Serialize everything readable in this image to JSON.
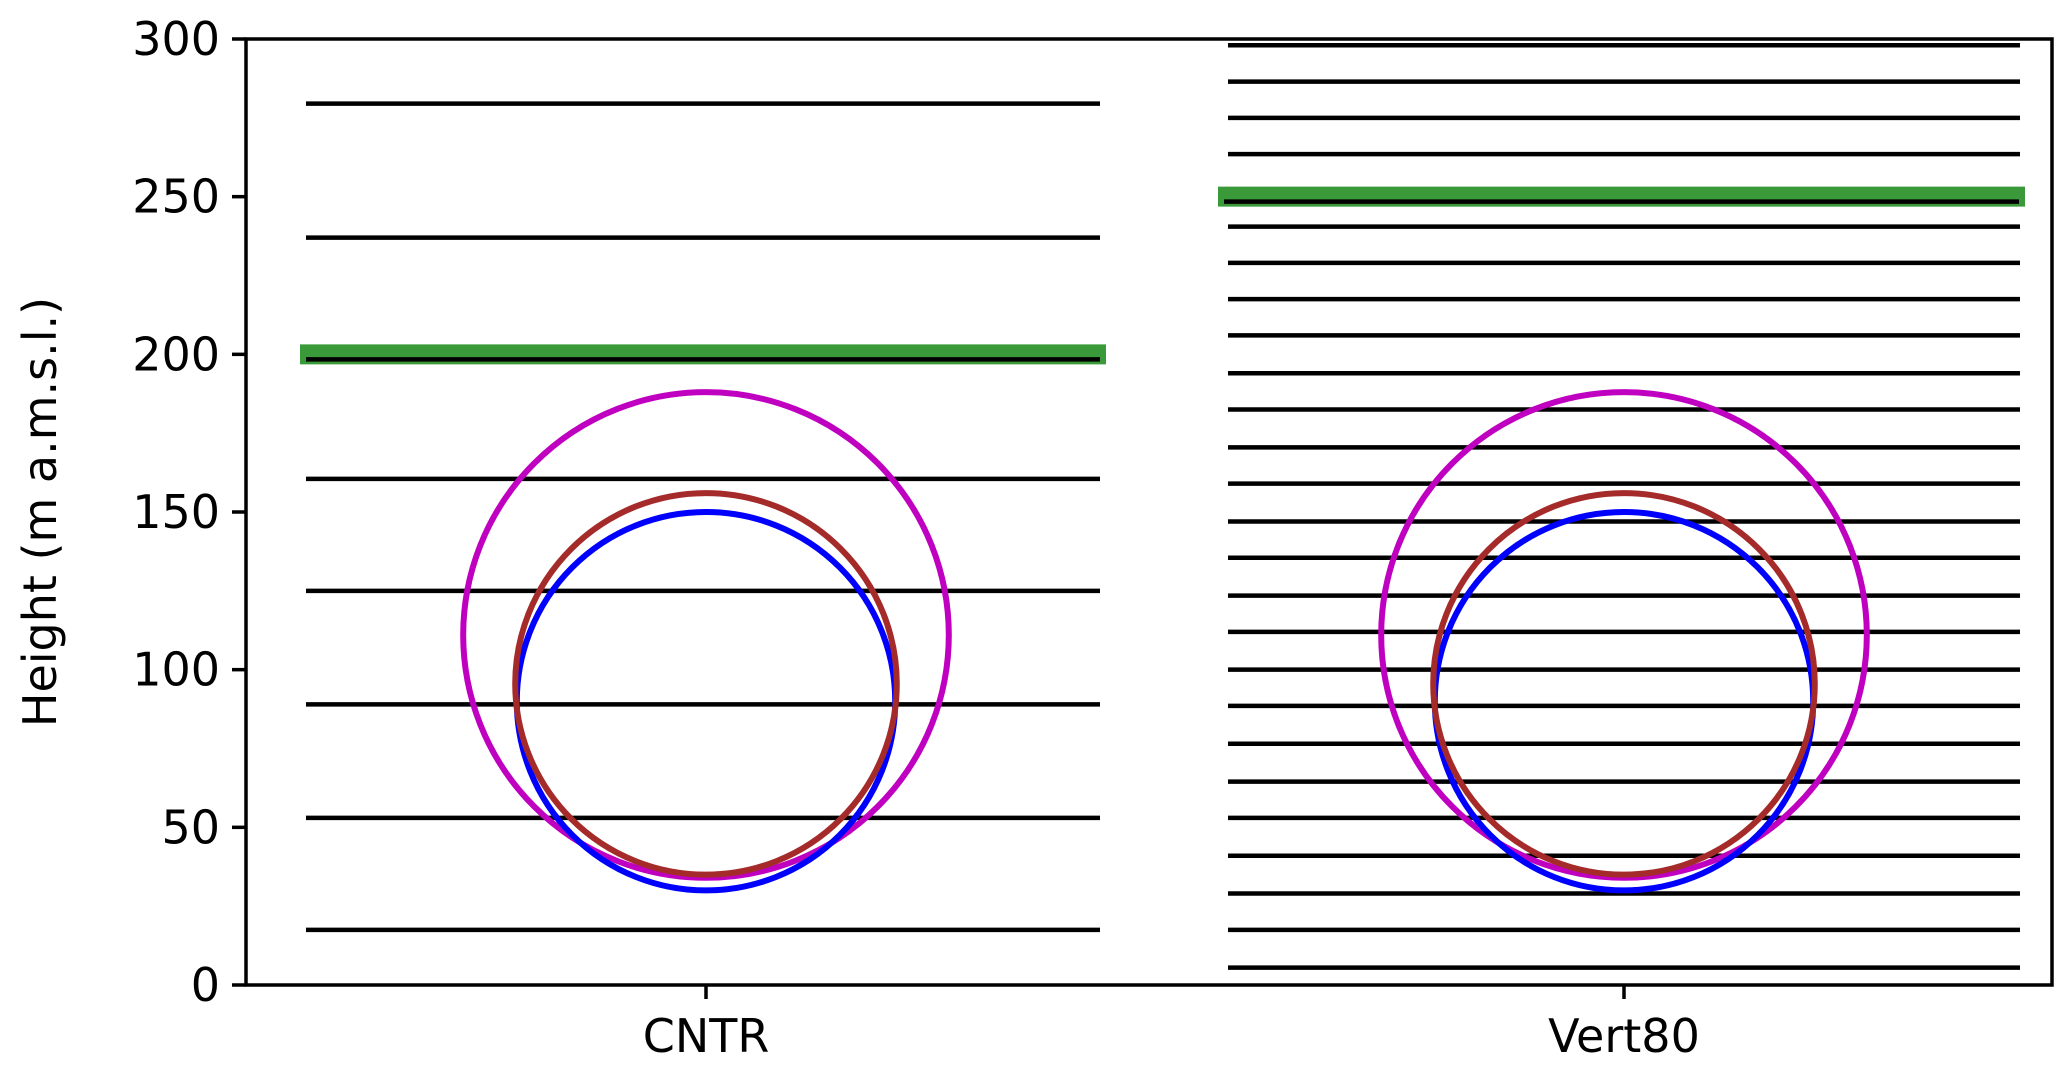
{
  "chart_data": {
    "type": "scatter",
    "title": "",
    "xlabel": "",
    "ylabel": "Height (m a.m.s.l.)",
    "ylim": [
      0,
      300
    ],
    "yticks": [
      0,
      50,
      100,
      150,
      200,
      250,
      300
    ],
    "grid": false,
    "categories": [
      "CNTR",
      "Vert80"
    ],
    "colors": {
      "levels": "#000000",
      "top_marker": "#3a9a3a",
      "blue_circle": "#0000ff",
      "brown_circle": "#a52a2a",
      "magenta_circle": "#c000c0"
    },
    "panels": [
      {
        "category": "CNTR",
        "level_heights": [
          17.5,
          53,
          89,
          125,
          160.5,
          198,
          237,
          279.5
        ],
        "top_marker_height": 200,
        "circles": [
          {
            "color": "magenta",
            "center": 111,
            "radius": 77
          },
          {
            "color": "blue",
            "center": 90,
            "radius": 60
          },
          {
            "color": "brown",
            "center": 95.5,
            "radius": 60.5
          }
        ]
      },
      {
        "category": "Vert80",
        "level_heights": [
          5.5,
          17.5,
          29,
          41,
          53,
          64.5,
          76.5,
          88.5,
          100,
          112,
          123.5,
          135.5,
          147,
          159,
          170.5,
          182.5,
          194,
          206,
          217.5,
          229,
          240.5,
          252,
          263.5,
          275,
          286.5,
          298
        ],
        "top_marker_height": 250,
        "circles": [
          {
            "color": "magenta",
            "center": 111,
            "radius": 77
          },
          {
            "color": "blue",
            "center": 90,
            "radius": 60
          },
          {
            "color": "brown",
            "center": 95.5,
            "radius": 60.5
          }
        ]
      }
    ]
  }
}
